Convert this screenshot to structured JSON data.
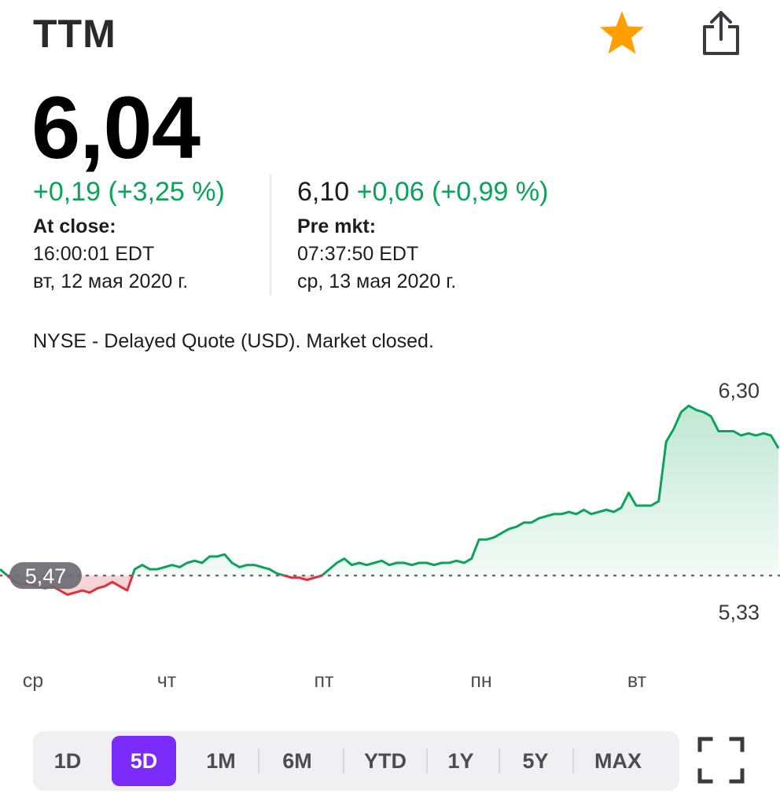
{
  "header": {
    "ticker": "TTM",
    "favorite_icon": "star-icon",
    "share_icon": "share-icon",
    "favorite_color": "#ffa000"
  },
  "quote": {
    "price": "6,04",
    "close": {
      "change": "+0,19 (+3,25 %)",
      "label": "At close:",
      "time": "16:00:01 EDT",
      "date": "вт, 12 мая 2020 г."
    },
    "premarket": {
      "price": "6,10",
      "change": "+0,06 (+0,99 %)",
      "label": "Pre mkt:",
      "time": "07:37:50 EDT",
      "date": "ср, 13 мая 2020 г."
    },
    "colors": {
      "up": "#0aa35a",
      "down": "#e0313b"
    }
  },
  "exchange_note": "NYSE - Delayed Quote (USD). Market closed.",
  "chart_data": {
    "type": "line",
    "prev_close": 5.47,
    "prev_close_label": "5,47",
    "high_label": "6,30",
    "low_label": "5,33",
    "ylim": [
      5.33,
      6.3
    ],
    "x_labels": [
      "ср",
      "чт",
      "пт",
      "пн",
      "вт"
    ],
    "series": [
      {
        "values": [
          5.5,
          5.47,
          5.44,
          5.43,
          5.43,
          5.42,
          5.41,
          5.42,
          5.4,
          5.38,
          5.39,
          5.4,
          5.39,
          5.41,
          5.42,
          5.44,
          5.42,
          5.4,
          5.5,
          5.52,
          5.5,
          5.5,
          5.51,
          5.52,
          5.51,
          5.53,
          5.54,
          5.53,
          5.56,
          5.56,
          5.57,
          5.53,
          5.51,
          5.52,
          5.52,
          5.51,
          5.5,
          5.48,
          5.47,
          5.46,
          5.46,
          5.45,
          5.46,
          5.47,
          5.5,
          5.53,
          5.55,
          5.52,
          5.53,
          5.52,
          5.53,
          5.54,
          5.52,
          5.53,
          5.53,
          5.52,
          5.53,
          5.53,
          5.52,
          5.53,
          5.53,
          5.54,
          5.53,
          5.55,
          5.64,
          5.64,
          5.65,
          5.67,
          5.69,
          5.7,
          5.72,
          5.72,
          5.74,
          5.75,
          5.76,
          5.76,
          5.77,
          5.76,
          5.78,
          5.76,
          5.77,
          5.78,
          5.77,
          5.79,
          5.86,
          5.8,
          5.8,
          5.8,
          5.82,
          6.1,
          6.16,
          6.24,
          6.27,
          6.25,
          6.24,
          6.22,
          6.15,
          6.15,
          6.15,
          6.13,
          6.14,
          6.13,
          6.14,
          6.13,
          6.07
        ]
      }
    ]
  },
  "ranges": [
    "1D",
    "5D",
    "1M",
    "6M",
    "YTD",
    "1Y",
    "5Y",
    "MAX"
  ],
  "active_range": "5D",
  "expand_icon": "fullscreen-icon"
}
